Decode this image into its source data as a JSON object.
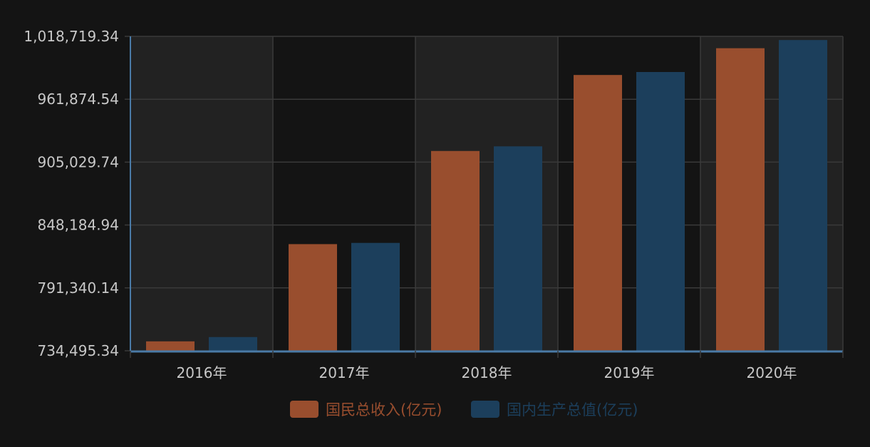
{
  "colors": {
    "background": "#141414",
    "band_dark": "#141414",
    "band_light": "#222222",
    "grid": "#3a3a3a",
    "axis": "#4a7aa6",
    "tick_text": "#c8c8c8"
  },
  "chart_data": {
    "type": "bar",
    "categories": [
      "2016年",
      "2017年",
      "2018年",
      "2019年",
      "2020年"
    ],
    "series": [
      {
        "name": "国民总收入(亿元)",
        "color": "#994e2e",
        "values": [
          743000,
          830900,
          915100,
          983800,
          1008000
        ]
      },
      {
        "name": "国内生产总值(亿元)",
        "color": "#1c3f5c",
        "values": [
          746900,
          832000,
          919300,
          986500,
          1015400
        ]
      }
    ],
    "ylim": [
      734495.34,
      1018719.34
    ],
    "y_ticks": [
      "734,495.34",
      "791,340.14",
      "848,184.94",
      "905,029.74",
      "961,874.54",
      "1,018,719.34"
    ],
    "grid": true,
    "legend": "bottom-center"
  }
}
